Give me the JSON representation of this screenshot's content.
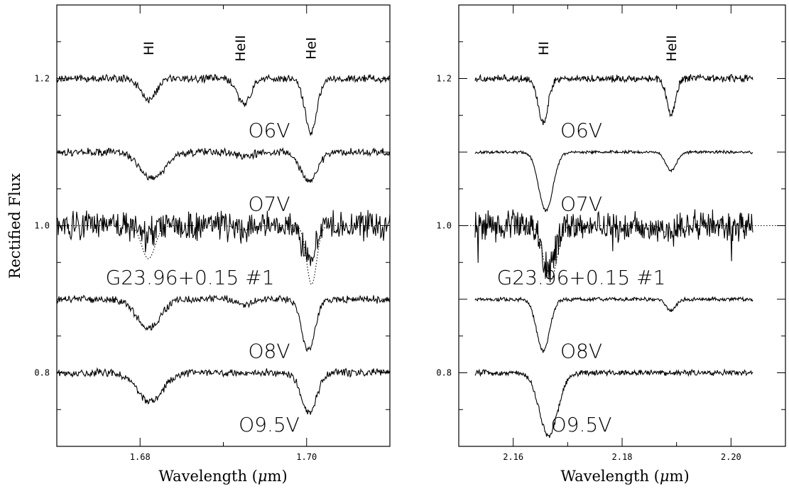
{
  "figure": {
    "ylabel": "Rectified Flux",
    "xlabel_prefix": "Wavelength (",
    "xlabel_symbol": "μ",
    "xlabel_suffix": "m)"
  },
  "chart_data": [
    {
      "type": "line",
      "title": "",
      "xlabel": "Wavelength (μm)",
      "ylabel": "Rectified Flux",
      "xlim": [
        1.67,
        1.71
      ],
      "ylim": [
        0.7,
        1.3
      ],
      "x_ticks": [
        1.68,
        1.7
      ],
      "x_tick_labels": [
        "1.68",
        "1.70"
      ],
      "y_ticks": [
        0.8,
        1.0,
        1.2
      ],
      "y_tick_labels": [
        "0.8",
        "1.0",
        "1.2"
      ],
      "spectrum_range": [
        1.67,
        1.71
      ],
      "noise": [
        0.004,
        0.004,
        0.016,
        0.004,
        0.004
      ],
      "line_ids": [
        {
          "label": "HI",
          "x": 1.681
        },
        {
          "label": "HeII",
          "x": 1.692
        },
        {
          "label": "HeI",
          "x": 1.7005
        }
      ],
      "series": [
        {
          "name": "O6V",
          "offset": 1.2,
          "label_x": 1.6955,
          "label_y": 1.13,
          "lines": [
            {
              "center": 1.681,
              "depth": 0.03,
              "width": 0.0009
            },
            {
              "center": 1.6925,
              "depth": 0.035,
              "width": 0.0008
            },
            {
              "center": 1.7005,
              "depth": 0.075,
              "width": 0.0007
            }
          ]
        },
        {
          "name": "O7V",
          "offset": 1.1,
          "label_x": 1.6955,
          "label_y": 1.03,
          "lines": [
            {
              "center": 1.6815,
              "depth": 0.035,
              "width": 0.0015
            },
            {
              "center": 1.6925,
              "depth": 0.005,
              "width": 0.001
            },
            {
              "center": 1.7003,
              "depth": 0.04,
              "width": 0.001
            }
          ]
        },
        {
          "name": "G23.96+0.15 #1",
          "offset": 1.0,
          "label_x": 1.686,
          "label_y": 0.93,
          "lines": [
            {
              "center": 1.681,
              "depth": 0.01,
              "width": 0.001
            },
            {
              "center": 1.6925,
              "depth": 0.005,
              "width": 0.001
            },
            {
              "center": 1.7003,
              "depth": 0.05,
              "width": 0.0007
            }
          ]
        },
        {
          "name": "O8V",
          "offset": 0.9,
          "label_x": 1.6955,
          "label_y": 0.83,
          "lines": [
            {
              "center": 1.681,
              "depth": 0.04,
              "width": 0.0014
            },
            {
              "center": 1.6925,
              "depth": 0.008,
              "width": 0.0008
            },
            {
              "center": 1.7002,
              "depth": 0.07,
              "width": 0.0008
            }
          ]
        },
        {
          "name": "O9.5V",
          "offset": 0.8,
          "label_x": 1.6955,
          "label_y": 0.73,
          "lines": [
            {
              "center": 1.6812,
              "depth": 0.04,
              "width": 0.0015
            },
            {
              "center": 1.7003,
              "depth": 0.055,
              "width": 0.0009
            }
          ]
        }
      ],
      "model": {
        "offset": 1.0,
        "lines": [
          {
            "center": 1.681,
            "depth": 0.045,
            "width": 0.0008
          },
          {
            "center": 1.6925,
            "depth": 0.006,
            "width": 0.0009
          },
          {
            "center": 1.7006,
            "depth": 0.08,
            "width": 0.0006
          }
        ]
      }
    },
    {
      "type": "line",
      "title": "",
      "xlabel": "Wavelength (μm)",
      "ylabel": "",
      "xlim": [
        2.15,
        2.21
      ],
      "ylim": [
        0.7,
        1.3
      ],
      "x_ticks": [
        2.16,
        2.18,
        2.2
      ],
      "x_tick_labels": [
        "2.16",
        "2.18",
        "2.20"
      ],
      "y_ticks": [
        0.8,
        1.0,
        1.2
      ],
      "y_tick_labels": [
        "0.8",
        "1.0",
        "1.2"
      ],
      "spectrum_range": [
        2.153,
        2.204
      ],
      "noise": [
        0.004,
        0.0015,
        0.016,
        0.002,
        0.003
      ],
      "line_ids": [
        {
          "label": "HI",
          "x": 2.1655
        },
        {
          "label": "HeII",
          "x": 2.189
        }
      ],
      "series": [
        {
          "name": "O6V",
          "offset": 1.2,
          "label_x": 2.1725,
          "label_y": 1.13,
          "lines": [
            {
              "center": 2.1655,
              "depth": 0.06,
              "width": 0.0009
            },
            {
              "center": 2.189,
              "depth": 0.05,
              "width": 0.0008
            }
          ]
        },
        {
          "name": "O7V",
          "offset": 1.1,
          "label_x": 2.1725,
          "label_y": 1.03,
          "lines": [
            {
              "center": 2.166,
              "depth": 0.08,
              "width": 0.0013
            },
            {
              "center": 2.189,
              "depth": 0.025,
              "width": 0.001
            }
          ]
        },
        {
          "name": "G23.96+0.15 #1",
          "offset": 1.0,
          "label_x": 2.1725,
          "label_y": 0.93,
          "lines": [
            {
              "center": 2.1665,
              "depth": 0.06,
              "width": 0.0012
            },
            {
              "center": 2.189,
              "depth": 0.01,
              "width": 0.001
            }
          ]
        },
        {
          "name": "O8V",
          "offset": 0.9,
          "label_x": 2.1725,
          "label_y": 0.83,
          "lines": [
            {
              "center": 2.1655,
              "depth": 0.07,
              "width": 0.0012
            },
            {
              "center": 2.189,
              "depth": 0.015,
              "width": 0.0009
            }
          ]
        },
        {
          "name": "O9.5V",
          "offset": 0.8,
          "label_x": 2.1725,
          "label_y": 0.73,
          "lines": [
            {
              "center": 2.1665,
              "depth": 0.085,
              "width": 0.0017
            }
          ]
        }
      ],
      "model": {
        "offset": 1.0,
        "lines": [
          {
            "center": 2.1668,
            "depth": 0.075,
            "width": 0.0012
          },
          {
            "center": 2.189,
            "depth": 0.015,
            "width": 0.0012
          }
        ]
      }
    }
  ]
}
